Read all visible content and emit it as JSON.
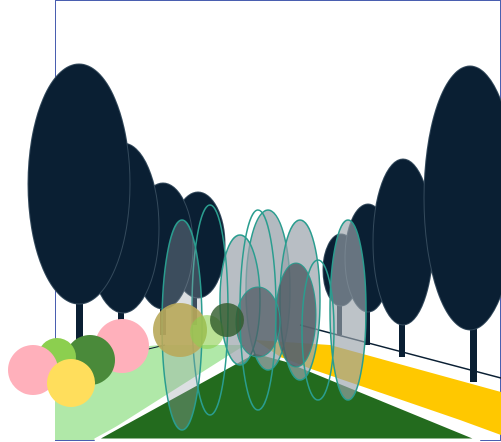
{
  "scene": {
    "description": "",
    "colors": {
      "background": "#ffffff",
      "frame": "#4a5fb0",
      "tree_dark": "#0a1f33",
      "tree_grey": "#9aa3ab",
      "tree_outline_teal": "#2a9d8f",
      "lawn_light": "#b0e8a8",
      "lawn_dark": "#236b1e",
      "path_yellow": "#ffc800",
      "shrub_pink": "#ffb0bb",
      "shrub_green": "#8ccf4f",
      "shrub_darkgreen": "#4a8a3a",
      "shrub_yellow": "#ffde5c",
      "shrub_olive": "#b8a85a"
    },
    "elements": [
      "frame",
      "lawn-left",
      "lawn-center",
      "path-right",
      "tree-row-left",
      "tree-row-right",
      "tree-row-center",
      "shrub-cluster"
    ]
  }
}
